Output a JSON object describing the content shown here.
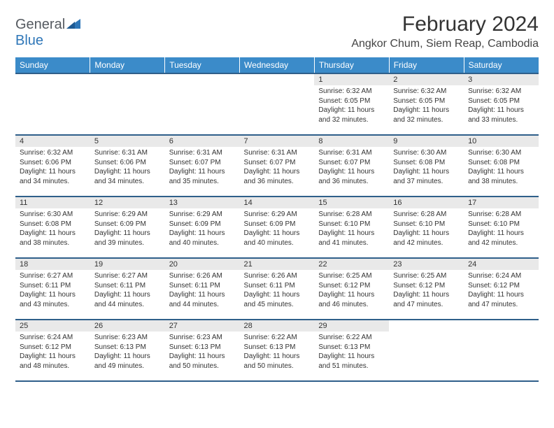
{
  "brand": {
    "t1": "General",
    "t2": "Blue"
  },
  "title": "February 2024",
  "location": "Angkor Chum, Siem Reap, Cambodia",
  "colors": {
    "header_bg": "#3b8bc9",
    "rule": "#2f5f8a",
    "daynum_bg": "#e9e9e9",
    "logo_blue": "#2f77b8",
    "text": "#333333",
    "page_bg": "#ffffff"
  },
  "day_headers": [
    "Sunday",
    "Monday",
    "Tuesday",
    "Wednesday",
    "Thursday",
    "Friday",
    "Saturday"
  ],
  "weeks": [
    [
      {
        "n": "",
        "sr": "",
        "ss": "",
        "dl": ""
      },
      {
        "n": "",
        "sr": "",
        "ss": "",
        "dl": ""
      },
      {
        "n": "",
        "sr": "",
        "ss": "",
        "dl": ""
      },
      {
        "n": "",
        "sr": "",
        "ss": "",
        "dl": ""
      },
      {
        "n": "1",
        "sr": "Sunrise: 6:32 AM",
        "ss": "Sunset: 6:05 PM",
        "dl": "Daylight: 11 hours and 32 minutes."
      },
      {
        "n": "2",
        "sr": "Sunrise: 6:32 AM",
        "ss": "Sunset: 6:05 PM",
        "dl": "Daylight: 11 hours and 32 minutes."
      },
      {
        "n": "3",
        "sr": "Sunrise: 6:32 AM",
        "ss": "Sunset: 6:05 PM",
        "dl": "Daylight: 11 hours and 33 minutes."
      }
    ],
    [
      {
        "n": "4",
        "sr": "Sunrise: 6:32 AM",
        "ss": "Sunset: 6:06 PM",
        "dl": "Daylight: 11 hours and 34 minutes."
      },
      {
        "n": "5",
        "sr": "Sunrise: 6:31 AM",
        "ss": "Sunset: 6:06 PM",
        "dl": "Daylight: 11 hours and 34 minutes."
      },
      {
        "n": "6",
        "sr": "Sunrise: 6:31 AM",
        "ss": "Sunset: 6:07 PM",
        "dl": "Daylight: 11 hours and 35 minutes."
      },
      {
        "n": "7",
        "sr": "Sunrise: 6:31 AM",
        "ss": "Sunset: 6:07 PM",
        "dl": "Daylight: 11 hours and 36 minutes."
      },
      {
        "n": "8",
        "sr": "Sunrise: 6:31 AM",
        "ss": "Sunset: 6:07 PM",
        "dl": "Daylight: 11 hours and 36 minutes."
      },
      {
        "n": "9",
        "sr": "Sunrise: 6:30 AM",
        "ss": "Sunset: 6:08 PM",
        "dl": "Daylight: 11 hours and 37 minutes."
      },
      {
        "n": "10",
        "sr": "Sunrise: 6:30 AM",
        "ss": "Sunset: 6:08 PM",
        "dl": "Daylight: 11 hours and 38 minutes."
      }
    ],
    [
      {
        "n": "11",
        "sr": "Sunrise: 6:30 AM",
        "ss": "Sunset: 6:08 PM",
        "dl": "Daylight: 11 hours and 38 minutes."
      },
      {
        "n": "12",
        "sr": "Sunrise: 6:29 AM",
        "ss": "Sunset: 6:09 PM",
        "dl": "Daylight: 11 hours and 39 minutes."
      },
      {
        "n": "13",
        "sr": "Sunrise: 6:29 AM",
        "ss": "Sunset: 6:09 PM",
        "dl": "Daylight: 11 hours and 40 minutes."
      },
      {
        "n": "14",
        "sr": "Sunrise: 6:29 AM",
        "ss": "Sunset: 6:09 PM",
        "dl": "Daylight: 11 hours and 40 minutes."
      },
      {
        "n": "15",
        "sr": "Sunrise: 6:28 AM",
        "ss": "Sunset: 6:10 PM",
        "dl": "Daylight: 11 hours and 41 minutes."
      },
      {
        "n": "16",
        "sr": "Sunrise: 6:28 AM",
        "ss": "Sunset: 6:10 PM",
        "dl": "Daylight: 11 hours and 42 minutes."
      },
      {
        "n": "17",
        "sr": "Sunrise: 6:28 AM",
        "ss": "Sunset: 6:10 PM",
        "dl": "Daylight: 11 hours and 42 minutes."
      }
    ],
    [
      {
        "n": "18",
        "sr": "Sunrise: 6:27 AM",
        "ss": "Sunset: 6:11 PM",
        "dl": "Daylight: 11 hours and 43 minutes."
      },
      {
        "n": "19",
        "sr": "Sunrise: 6:27 AM",
        "ss": "Sunset: 6:11 PM",
        "dl": "Daylight: 11 hours and 44 minutes."
      },
      {
        "n": "20",
        "sr": "Sunrise: 6:26 AM",
        "ss": "Sunset: 6:11 PM",
        "dl": "Daylight: 11 hours and 44 minutes."
      },
      {
        "n": "21",
        "sr": "Sunrise: 6:26 AM",
        "ss": "Sunset: 6:11 PM",
        "dl": "Daylight: 11 hours and 45 minutes."
      },
      {
        "n": "22",
        "sr": "Sunrise: 6:25 AM",
        "ss": "Sunset: 6:12 PM",
        "dl": "Daylight: 11 hours and 46 minutes."
      },
      {
        "n": "23",
        "sr": "Sunrise: 6:25 AM",
        "ss": "Sunset: 6:12 PM",
        "dl": "Daylight: 11 hours and 47 minutes."
      },
      {
        "n": "24",
        "sr": "Sunrise: 6:24 AM",
        "ss": "Sunset: 6:12 PM",
        "dl": "Daylight: 11 hours and 47 minutes."
      }
    ],
    [
      {
        "n": "25",
        "sr": "Sunrise: 6:24 AM",
        "ss": "Sunset: 6:12 PM",
        "dl": "Daylight: 11 hours and 48 minutes."
      },
      {
        "n": "26",
        "sr": "Sunrise: 6:23 AM",
        "ss": "Sunset: 6:13 PM",
        "dl": "Daylight: 11 hours and 49 minutes."
      },
      {
        "n": "27",
        "sr": "Sunrise: 6:23 AM",
        "ss": "Sunset: 6:13 PM",
        "dl": "Daylight: 11 hours and 50 minutes."
      },
      {
        "n": "28",
        "sr": "Sunrise: 6:22 AM",
        "ss": "Sunset: 6:13 PM",
        "dl": "Daylight: 11 hours and 50 minutes."
      },
      {
        "n": "29",
        "sr": "Sunrise: 6:22 AM",
        "ss": "Sunset: 6:13 PM",
        "dl": "Daylight: 11 hours and 51 minutes."
      },
      {
        "n": "",
        "sr": "",
        "ss": "",
        "dl": ""
      },
      {
        "n": "",
        "sr": "",
        "ss": "",
        "dl": ""
      }
    ]
  ]
}
